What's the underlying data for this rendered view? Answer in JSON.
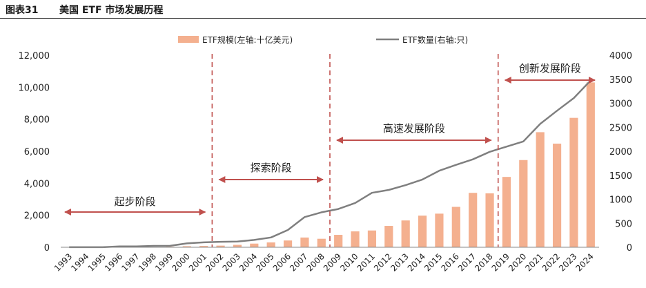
{
  "header": {
    "figure_number": "图表31",
    "title": "美国 ETF 市场发展历程"
  },
  "colors": {
    "bar": "#F4B08F",
    "line": "#7F7F7F",
    "divider": "#C0504D",
    "arrow": "#C0504D"
  },
  "chart_data": {
    "type": "bar",
    "categories": [
      "1993",
      "1994",
      "1995",
      "1996",
      "1997",
      "1998",
      "1999",
      "2000",
      "2001",
      "2002",
      "2003",
      "2004",
      "2005",
      "2006",
      "2007",
      "2008",
      "2009",
      "2010",
      "2011",
      "2012",
      "2013",
      "2014",
      "2015",
      "2016",
      "2017",
      "2018",
      "2019",
      "2020",
      "2021",
      "2022",
      "2023",
      "2024"
    ],
    "series": [
      {
        "name": "ETF规模(左轴:十亿美元)",
        "type": "bar",
        "axis": "left",
        "values": [
          0.5,
          0.4,
          1,
          2,
          7,
          16,
          34,
          66,
          83,
          102,
          151,
          228,
          301,
          423,
          608,
          531,
          777,
          992,
          1048,
          1337,
          1675,
          1975,
          2101,
          2524,
          3400,
          3371,
          4396,
          5449,
          7191,
          6477,
          8087,
          10300
        ]
      },
      {
        "name": "ETF数量(右轴:只)",
        "type": "line",
        "axis": "right",
        "values": [
          1,
          2,
          2,
          19,
          19,
          29,
          30,
          80,
          102,
          113,
          119,
          152,
          204,
          359,
          629,
          728,
          797,
          923,
          1134,
          1194,
          1294,
          1411,
          1594,
          1716,
          1832,
          1988,
          2096,
          2204,
          2570,
          2844,
          3108,
          3475
        ]
      }
    ],
    "left_axis": {
      "min": 0,
      "max": 12000,
      "ticks": [
        "0",
        "2,000",
        "4,000",
        "6,000",
        "8,000",
        "10,000",
        "12,000"
      ]
    },
    "right_axis": {
      "min": 0,
      "max": 4000,
      "ticks": [
        "0",
        "500",
        "1000",
        "1500",
        "2000",
        "2500",
        "3000",
        "3500",
        "4000"
      ]
    },
    "dividers_after": [
      "2001",
      "2008",
      "2018"
    ],
    "stages": [
      {
        "label": "起步阶段",
        "from": "1993",
        "to": "2001"
      },
      {
        "label": "探索阶段",
        "from": "2001",
        "to": "2008"
      },
      {
        "label": "高速发展阶段",
        "from": "2008",
        "to": "2018"
      },
      {
        "label": "创新发展阶段",
        "from": "2018",
        "to": "2024"
      }
    ],
    "legend": {
      "position": "top"
    },
    "grid": false
  }
}
